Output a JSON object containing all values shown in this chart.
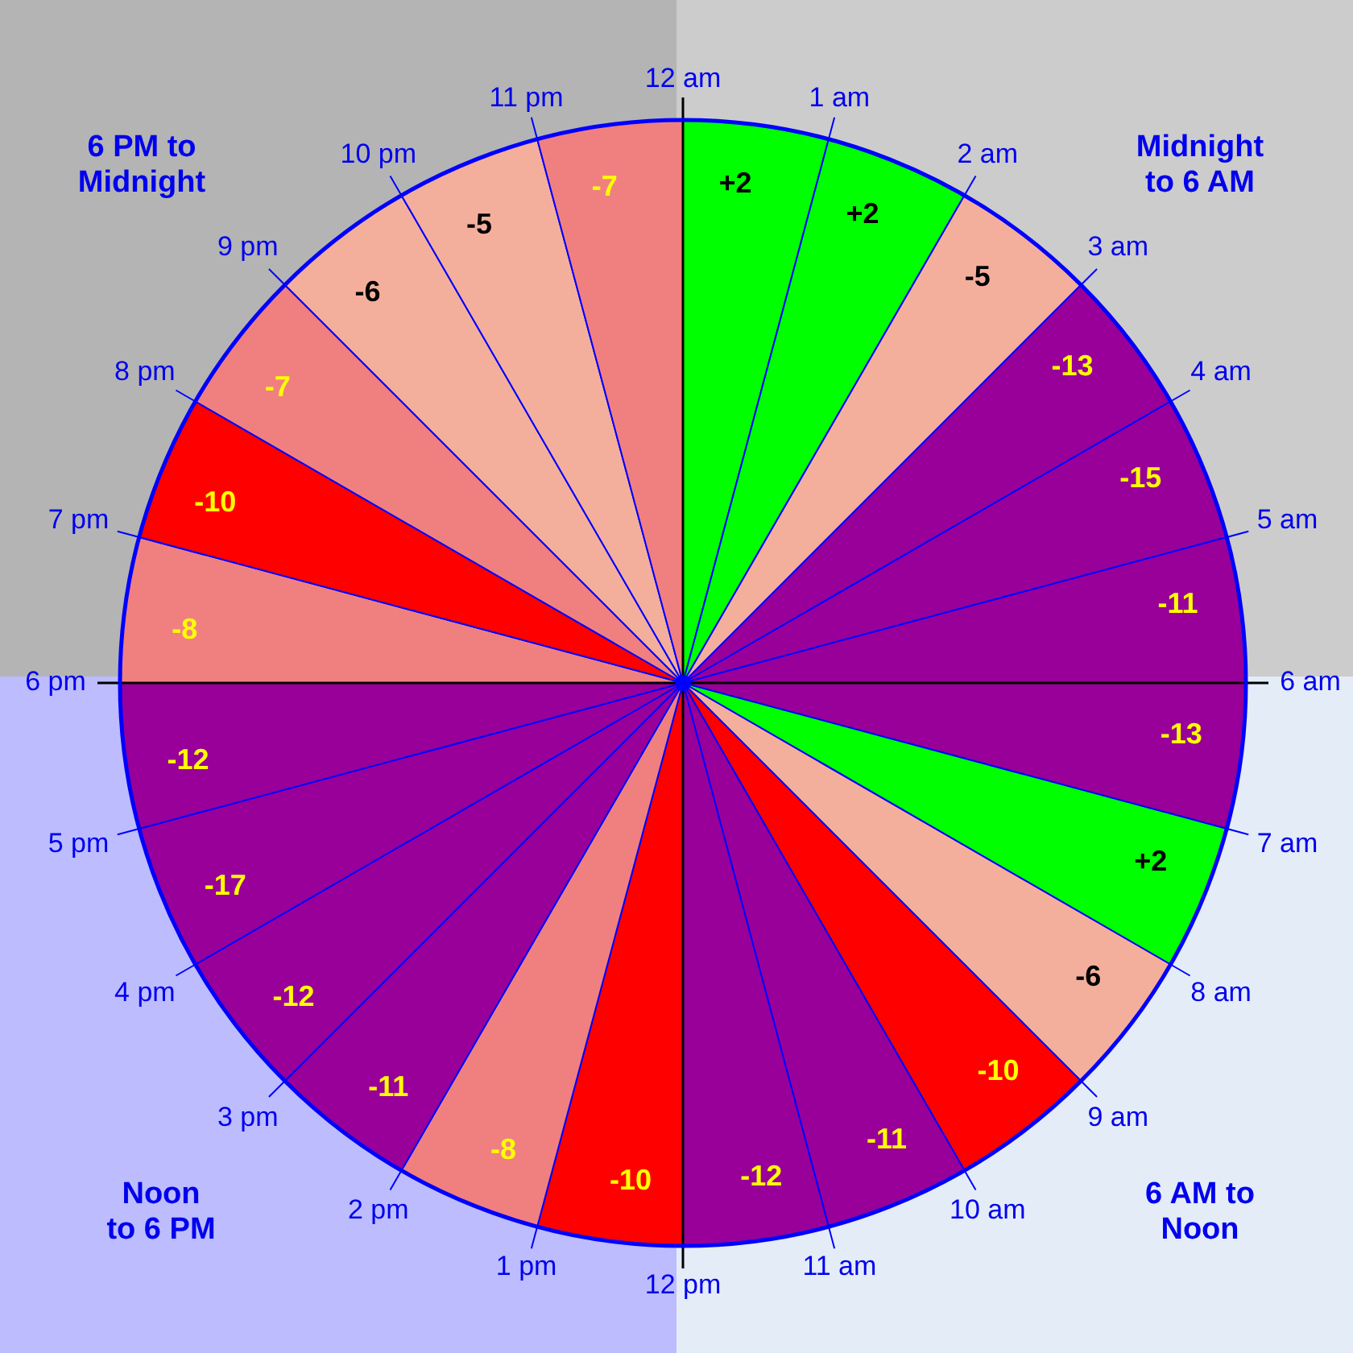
{
  "chart_data": {
    "type": "other",
    "categories": [
      "12 am",
      "1 am",
      "2 am",
      "3 am",
      "4 am",
      "5 am",
      "6 am",
      "7 am",
      "8 am",
      "9 am",
      "10 am",
      "11 am",
      "12 pm",
      "1 pm",
      "2 pm",
      "3 pm",
      "4 pm",
      "5 pm",
      "6 pm",
      "7 pm",
      "8 pm",
      "9 pm",
      "10 pm",
      "11 pm"
    ],
    "values": [
      2,
      2,
      -5,
      -13,
      -15,
      -11,
      -13,
      2,
      -6,
      -10,
      -11,
      -12,
      -10,
      -8,
      -11,
      -12,
      -17,
      -12,
      -8,
      -10,
      -7,
      -6,
      -5,
      -7
    ],
    "value_labels": [
      "+2",
      "+2",
      "-5",
      "-13",
      "-15",
      "-11",
      "-13",
      "+2",
      "-6",
      "-10",
      "-11",
      "-12",
      "-10",
      "-8",
      "-11",
      "-12",
      "-17",
      "-12",
      "-8",
      "-10",
      "-7",
      "-6",
      "-5",
      "-7"
    ],
    "colors": [
      "#00ff00",
      "#00ff00",
      "#f4af9c",
      "#990099",
      "#990099",
      "#990099",
      "#990099",
      "#00ff00",
      "#f4af9c",
      "#ff0000",
      "#990099",
      "#990099",
      "#ff0000",
      "#f08080",
      "#990099",
      "#990099",
      "#990099",
      "#990099",
      "#f08080",
      "#ff0000",
      "#f08080",
      "#f4af9c",
      "#f4af9c",
      "#f08080"
    ],
    "annotations": [
      "6 PM to\nMidnight",
      "Midnight\nto 6 AM",
      "Noon\nto 6 PM",
      "6 AM to\nNoon"
    ]
  }
}
